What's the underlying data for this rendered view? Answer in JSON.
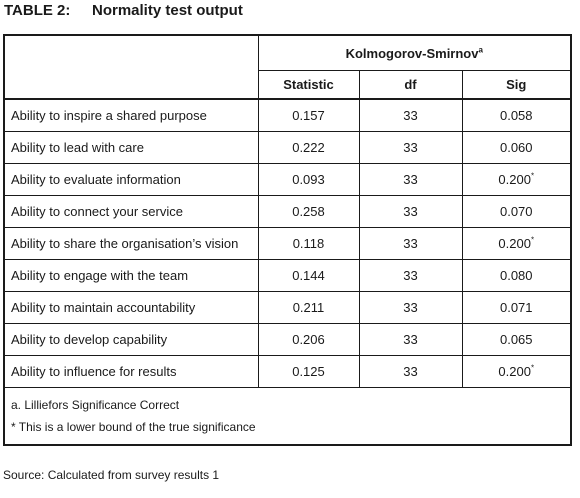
{
  "title": {
    "label": "TABLE 2:",
    "text": "Normality test output"
  },
  "table": {
    "group_header": "Kolmogorov-Smirnov",
    "group_header_sup": "a",
    "columns": [
      "Statistic",
      "df",
      "Sig"
    ],
    "rows": [
      {
        "name": "Ability to inspire a shared purpose",
        "statistic": "0.157",
        "df": "33",
        "sig": "0.058",
        "sig_sup": ""
      },
      {
        "name": "Ability to lead with care",
        "statistic": "0.222",
        "df": "33",
        "sig": "0.060",
        "sig_sup": ""
      },
      {
        "name": "Ability to evaluate information",
        "statistic": "0.093",
        "df": "33",
        "sig": "0.200",
        "sig_sup": "*"
      },
      {
        "name": "Ability to connect your service",
        "statistic": "0.258",
        "df": "33",
        "sig": "0.070",
        "sig_sup": ""
      },
      {
        "name": "Ability to share the organisation’s vision",
        "statistic": "0.118",
        "df": "33",
        "sig": "0.200",
        "sig_sup": "*"
      },
      {
        "name": "Ability to engage with the team",
        "statistic": "0.144",
        "df": "33",
        "sig": "0.080",
        "sig_sup": ""
      },
      {
        "name": "Ability to maintain accountability",
        "statistic": "0.211",
        "df": "33",
        "sig": "0.071",
        "sig_sup": ""
      },
      {
        "name": "Ability to develop capability",
        "statistic": "0.206",
        "df": "33",
        "sig": "0.065",
        "sig_sup": ""
      },
      {
        "name": "Ability to influence for results",
        "statistic": "0.125",
        "df": "33",
        "sig": "0.200",
        "sig_sup": "*"
      }
    ],
    "notes": [
      "a. Lilliefors Significance Correct",
      "*  This is a lower bound of the true significance"
    ]
  },
  "source": "Source: Calculated from survey results 1"
}
